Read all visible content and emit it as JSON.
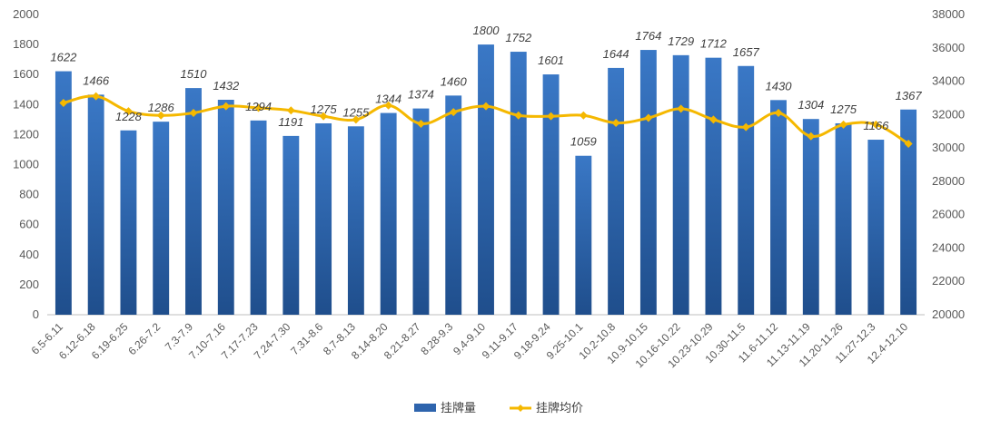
{
  "chart_data": {
    "type": "bar",
    "categories": [
      "6.5-6.11",
      "6.12-6.18",
      "6.19-6.25",
      "6.26-7.2",
      "7.3-7.9",
      "7.10-7.16",
      "7.17-7.23",
      "7.24-7.30",
      "7.31-8.6",
      "8.7-8.13",
      "8.14-8.20",
      "8.21-8.27",
      "8.28-9.3",
      "9.4-9.10",
      "9.11-9.17",
      "9.18-9.24",
      "9.25-10.1",
      "10.2-10.8",
      "10.9-10.15",
      "10.16-10.22",
      "10.23-10.29",
      "10.30-11.5",
      "11.6-11.12",
      "11.13-11.19",
      "11.20-11.26",
      "11.27-12.3",
      "12.4-12.10"
    ],
    "series": [
      {
        "name": "挂牌量",
        "type": "bar",
        "axis": "left",
        "color": "#2e64ad",
        "values": [
          1622,
          1466,
          1228,
          1286,
          1510,
          1432,
          1294,
          1191,
          1275,
          1255,
          1344,
          1374,
          1460,
          1800,
          1752,
          1601,
          1059,
          1644,
          1764,
          1729,
          1712,
          1657,
          1430,
          1304,
          1275,
          1166,
          1367
        ]
      },
      {
        "name": "挂牌均价",
        "type": "line",
        "axis": "right",
        "color": "#f5b800",
        "values": [
          32700,
          33100,
          32200,
          31950,
          32100,
          32500,
          32400,
          32250,
          31900,
          31700,
          32550,
          31450,
          32150,
          32500,
          31950,
          31900,
          31950,
          31500,
          31800,
          32350,
          31700,
          31250,
          32100,
          30700,
          31400,
          31400,
          30250
        ]
      }
    ],
    "left_axis": {
      "min": 0,
      "max": 2000,
      "ticks": [
        0,
        200,
        400,
        600,
        800,
        1000,
        1200,
        1400,
        1600,
        1800,
        2000
      ]
    },
    "right_axis": {
      "min": 20000,
      "max": 38000,
      "ticks": [
        20000,
        22000,
        24000,
        26000,
        28000,
        30000,
        32000,
        34000,
        36000,
        38000
      ]
    },
    "grid": false,
    "legend_position": "bottom",
    "title": "",
    "xlabel": "",
    "ylabel": ""
  }
}
